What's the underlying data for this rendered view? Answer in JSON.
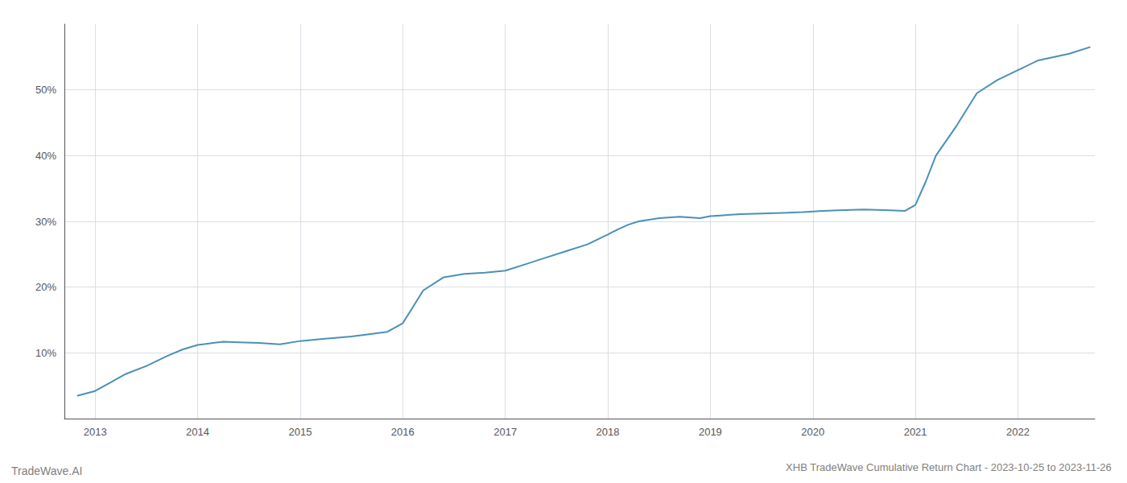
{
  "chart_data": {
    "type": "line",
    "title": "XHB TradeWave Cumulative Return Chart - 2023-10-25 to 2023-11-26",
    "annotations": [
      "TradeWave.AI"
    ],
    "x": [
      2012.83,
      2013.0,
      2013.15,
      2013.3,
      2013.5,
      2013.7,
      2013.85,
      2014.0,
      2014.15,
      2014.25,
      2014.4,
      2014.6,
      2014.8,
      2015.0,
      2015.2,
      2015.5,
      2015.7,
      2015.85,
      2016.0,
      2016.1,
      2016.2,
      2016.4,
      2016.6,
      2016.8,
      2017.0,
      2017.2,
      2017.4,
      2017.6,
      2017.8,
      2018.0,
      2018.1,
      2018.2,
      2018.3,
      2018.5,
      2018.7,
      2018.9,
      2019.0,
      2019.1,
      2019.2,
      2019.3,
      2019.5,
      2019.7,
      2019.9,
      2020.0,
      2020.1,
      2020.3,
      2020.5,
      2020.7,
      2020.9,
      2021.0,
      2021.1,
      2021.2,
      2021.4,
      2021.6,
      2021.8,
      2022.0,
      2022.2,
      2022.5,
      2022.7
    ],
    "values": [
      3.5,
      4.2,
      5.5,
      6.8,
      8.0,
      9.5,
      10.5,
      11.2,
      11.5,
      11.7,
      11.6,
      11.5,
      11.3,
      11.8,
      12.1,
      12.5,
      12.9,
      13.2,
      14.5,
      17.0,
      19.5,
      21.5,
      22.0,
      22.2,
      22.5,
      23.5,
      24.5,
      25.5,
      26.5,
      28.0,
      28.8,
      29.5,
      30.0,
      30.5,
      30.7,
      30.5,
      30.8,
      30.9,
      31.0,
      31.1,
      31.2,
      31.3,
      31.4,
      31.5,
      31.6,
      31.7,
      31.8,
      31.7,
      31.6,
      32.5,
      36.0,
      40.0,
      44.5,
      49.5,
      51.5,
      53.0,
      54.5,
      55.5,
      56.5
    ],
    "color": "#4a90b8",
    "xlim": [
      2012.7,
      2022.75
    ],
    "xticks": [
      2013,
      2014,
      2015,
      2016,
      2017,
      2018,
      2019,
      2020,
      2021,
      2022
    ],
    "ylim": [
      0,
      60
    ],
    "yticks": [
      {
        "value": 10,
        "label": "10%"
      },
      {
        "value": 20,
        "label": "20%"
      },
      {
        "value": 30,
        "label": "30%"
      },
      {
        "value": 40,
        "label": "40%"
      },
      {
        "value": 50,
        "label": "50%"
      }
    ],
    "grid": true
  }
}
